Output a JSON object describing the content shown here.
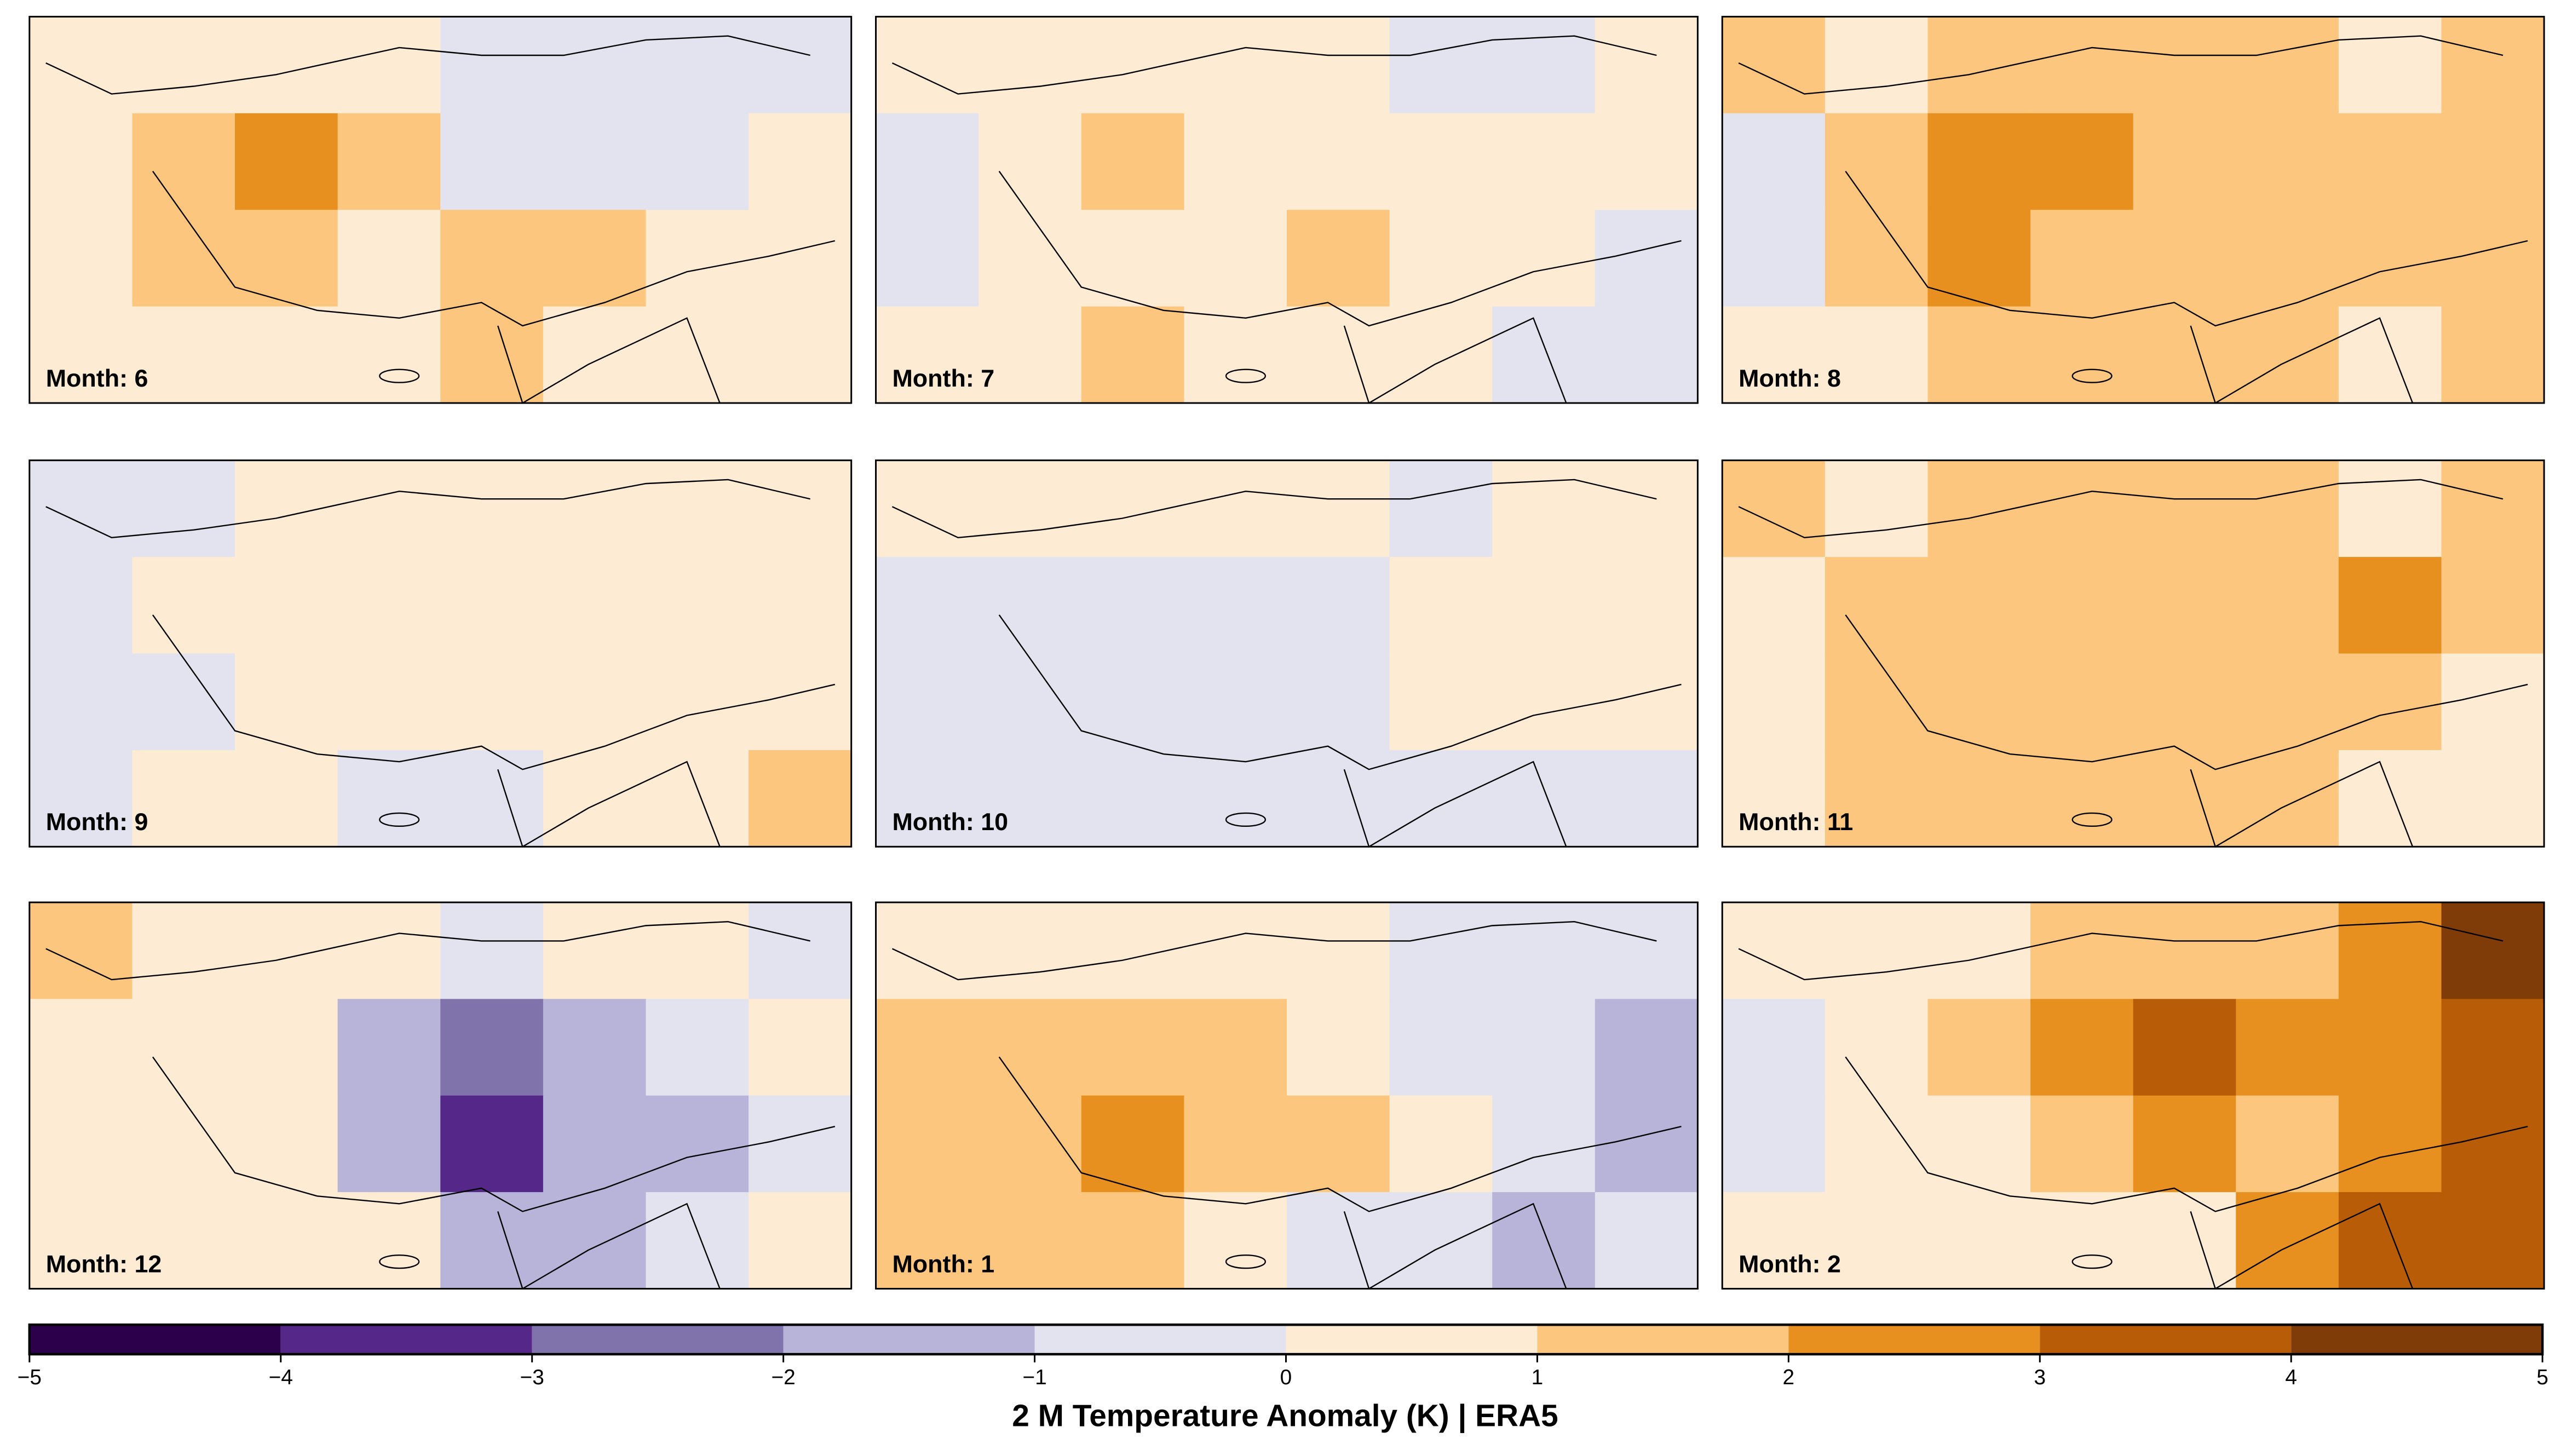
{
  "chart_data": {
    "type": "heatmap",
    "colorbar_label": "2 M Temperature Anomaly (K) | ERA5",
    "colorbar_ticks": [
      {
        "value": -5,
        "label": "−5"
      },
      {
        "value": -4,
        "label": "−4"
      },
      {
        "value": -3,
        "label": "−3"
      },
      {
        "value": -2,
        "label": "−2"
      },
      {
        "value": -1,
        "label": "−1"
      },
      0,
      1,
      2,
      3,
      4,
      5
    ],
    "colors": [
      "#2d004b",
      "#542788",
      "#8073ac",
      "#b8b3d8",
      "#e3e3ef",
      "#fdebd4",
      "#fdc67e",
      "#e8901f",
      "#b85c07",
      "#7f3b08"
    ],
    "panels": [
      {
        "label": "Month: 6",
        "values": [
          [
            0.5,
            0.5,
            0.5,
            0.5,
            -0.5,
            -0.5,
            -0.8,
            -0.5
          ],
          [
            0.5,
            1.5,
            2.2,
            1.2,
            -0.5,
            -0.5,
            -0.5,
            0.5
          ],
          [
            0.5,
            1.5,
            1.2,
            0.5,
            1.2,
            1.2,
            0.5,
            0.5
          ],
          [
            0.5,
            0.5,
            0.5,
            0.5,
            1.2,
            0.5,
            0.5,
            0.5
          ]
        ]
      },
      {
        "label": "Month: 7",
        "values": [
          [
            0.5,
            0.5,
            0.5,
            0.5,
            0.5,
            -0.5,
            -0.5,
            0.5
          ],
          [
            -0.5,
            0.5,
            1.2,
            0.5,
            0.5,
            0.5,
            0.5,
            0.5
          ],
          [
            -0.5,
            0.5,
            0.5,
            0.5,
            1.2,
            0.5,
            0.5,
            -0.5
          ],
          [
            0.5,
            0.5,
            1.2,
            0.5,
            0.5,
            0.5,
            -0.5,
            -0.5
          ]
        ]
      },
      {
        "label": "Month: 8",
        "values": [
          [
            1.5,
            0.5,
            1.5,
            1.5,
            1.5,
            1.5,
            0.5,
            1.5
          ],
          [
            -0.5,
            1.5,
            2.2,
            2.2,
            1.5,
            1.5,
            1.5,
            1.5
          ],
          [
            -0.5,
            1.5,
            2.2,
            1.5,
            1.5,
            1.5,
            1.5,
            1.5
          ],
          [
            0.5,
            0.5,
            1.5,
            1.5,
            1.5,
            1.5,
            0.5,
            1.5
          ]
        ]
      },
      {
        "label": "Month: 9",
        "values": [
          [
            -0.5,
            -0.5,
            0.5,
            0.5,
            0.5,
            0.5,
            0.5,
            0.5
          ],
          [
            -0.5,
            0.5,
            0.5,
            0.5,
            0.5,
            0.5,
            0.5,
            0.5
          ],
          [
            -0.5,
            -0.5,
            0.5,
            0.5,
            0.5,
            0.5,
            0.5,
            0.5
          ],
          [
            -0.5,
            0.5,
            0.5,
            -0.5,
            -0.5,
            0.5,
            0.5,
            1.2
          ]
        ]
      },
      {
        "label": "Month: 10",
        "values": [
          [
            0.5,
            0.5,
            0.5,
            0.5,
            0.5,
            -0.5,
            0.5,
            0.5
          ],
          [
            -0.5,
            -0.5,
            -0.5,
            -0.5,
            -0.5,
            0.5,
            0.5,
            0.5
          ],
          [
            -0.5,
            -0.5,
            -0.5,
            -0.5,
            -0.5,
            0.5,
            0.5,
            0.5
          ],
          [
            -0.5,
            -0.5,
            -0.5,
            -0.5,
            -0.5,
            -0.5,
            -0.5,
            -0.5
          ]
        ]
      },
      {
        "label": "Month: 11",
        "values": [
          [
            1.5,
            0.5,
            1.5,
            1.5,
            1.5,
            1.5,
            0.5,
            1.5
          ],
          [
            0.5,
            1.5,
            1.5,
            1.5,
            1.5,
            1.5,
            2.2,
            1.5
          ],
          [
            0.5,
            1.5,
            1.5,
            1.5,
            1.5,
            1.5,
            1.5,
            0.5
          ],
          [
            0.5,
            1.5,
            1.5,
            1.5,
            1.5,
            1.5,
            0.5,
            0.5
          ]
        ]
      },
      {
        "label": "Month: 12",
        "values": [
          [
            1.2,
            0.5,
            0.5,
            0.5,
            -0.5,
            0.5,
            0.5,
            -0.5
          ],
          [
            0.5,
            0.5,
            0.5,
            -1.5,
            -2.5,
            -1.5,
            -0.5,
            0.5
          ],
          [
            0.5,
            0.5,
            0.5,
            -1.5,
            -3.5,
            -1.5,
            -1.5,
            -0.5
          ],
          [
            0.5,
            0.5,
            0.5,
            0.5,
            -1.5,
            -1.5,
            -0.5,
            0.5
          ]
        ]
      },
      {
        "label": "Month: 1",
        "values": [
          [
            0.5,
            0.5,
            0.5,
            0.5,
            0.5,
            -0.5,
            -0.5,
            -0.5
          ],
          [
            1.5,
            1.5,
            1.5,
            1.5,
            0.5,
            -0.5,
            -0.5,
            -1.5
          ],
          [
            1.5,
            1.5,
            2.2,
            1.5,
            1.5,
            0.5,
            -0.5,
            -1.5
          ],
          [
            1.5,
            1.5,
            1.5,
            0.5,
            -0.5,
            -0.5,
            -1.5,
            -0.5
          ]
        ]
      },
      {
        "label": "Month: 2",
        "values": [
          [
            0.5,
            0.5,
            0.5,
            1.5,
            1.5,
            1.5,
            2.5,
            4.2
          ],
          [
            -0.5,
            0.5,
            1.5,
            2.5,
            3.2,
            2.5,
            2.5,
            3.5
          ],
          [
            -0.5,
            0.5,
            0.5,
            1.5,
            2.5,
            1.5,
            2.5,
            3.5
          ],
          [
            0.5,
            0.5,
            0.5,
            0.5,
            0.5,
            2.5,
            3.5,
            3.5
          ]
        ]
      }
    ]
  }
}
